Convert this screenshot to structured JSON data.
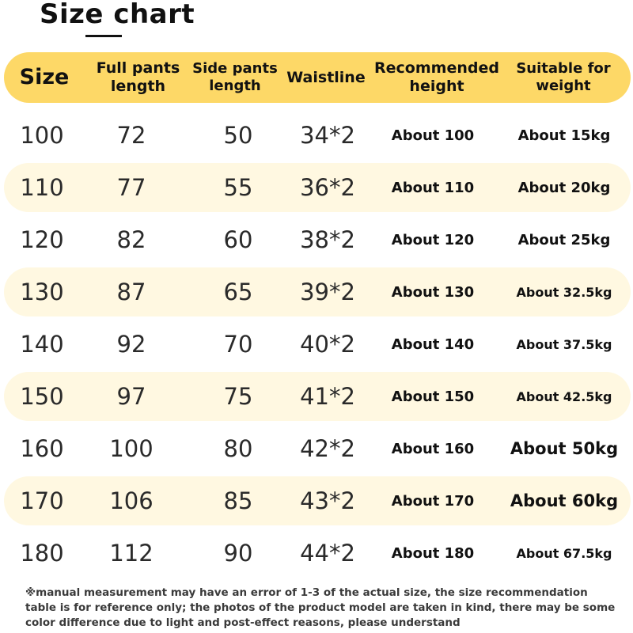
{
  "title": "Size chart",
  "headers": [
    "Size",
    "Full pants length",
    "Side pants length",
    "Waistline",
    "Recommended height",
    "Suitable for weight"
  ],
  "rows": [
    [
      "100",
      "72",
      "50",
      "34*2",
      "About 100",
      "About 15kg"
    ],
    [
      "110",
      "77",
      "55",
      "36*2",
      "About 110",
      "About 20kg"
    ],
    [
      "120",
      "82",
      "60",
      "38*2",
      "About 120",
      "About 25kg"
    ],
    [
      "130",
      "87",
      "65",
      "39*2",
      "About 130",
      "About 32.5kg"
    ],
    [
      "140",
      "92",
      "70",
      "40*2",
      "About 140",
      "About 37.5kg"
    ],
    [
      "150",
      "97",
      "75",
      "41*2",
      "About 150",
      "About 42.5kg"
    ],
    [
      "160",
      "100",
      "80",
      "42*2",
      "About 160",
      "About 50kg"
    ],
    [
      "170",
      "106",
      "85",
      "43*2",
      "About 170",
      "About 60kg"
    ],
    [
      "180",
      "112",
      "90",
      "44*2",
      "About 180",
      "About 67.5kg"
    ]
  ],
  "note": "※manual measurement may have an error of 1-3 of the actual size, the size recommendation table is for reference only; the photos of the product model are taken in kind, there may be some color difference due to light and post-effect reasons, please understand",
  "colors": {
    "header_bg": "#fdd867",
    "band_bg": "#fff8e1",
    "text": "#111111"
  }
}
